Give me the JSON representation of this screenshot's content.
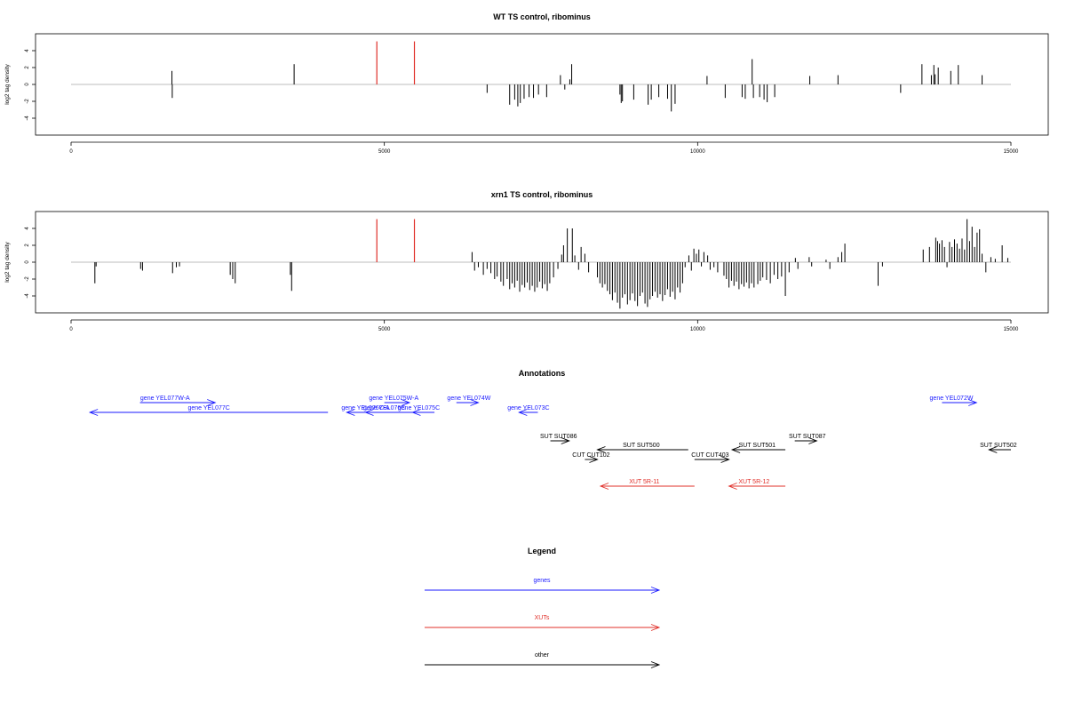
{
  "chart_data": [
    {
      "type": "bar",
      "title": "WT TS control, ribominus",
      "ylabel": "log2 tag density",
      "xlim": [
        0,
        15000
      ],
      "ylim": [
        -6,
        6
      ],
      "xticks": [
        "0",
        "5000",
        "10000",
        "15000"
      ],
      "yticks": [
        "-4",
        "-2",
        "0",
        "2",
        "4"
      ],
      "grid": false,
      "highlight_color": "#e0302a",
      "bar_color": "#000000",
      "baseline_color": "#bdbdbd",
      "highlight_bars": [
        [
          4880,
          5.1
        ],
        [
          5480,
          5.1
        ]
      ],
      "bars": [
        [
          1610,
          1.6
        ],
        [
          1615,
          -1.6
        ],
        [
          3560,
          2.4
        ],
        [
          6640,
          -1.0
        ],
        [
          7000,
          -2.4
        ],
        [
          7080,
          -1.8
        ],
        [
          7130,
          -2.6
        ],
        [
          7170,
          -2.2
        ],
        [
          7230,
          -1.7
        ],
        [
          7310,
          -1.5
        ],
        [
          7380,
          -1.6
        ],
        [
          7460,
          -1.2
        ],
        [
          7590,
          -1.5
        ],
        [
          7810,
          1.1
        ],
        [
          7880,
          -0.6
        ],
        [
          7960,
          0.6
        ],
        [
          7990,
          2.4
        ],
        [
          8760,
          -1.2
        ],
        [
          8780,
          -2.2
        ],
        [
          8800,
          -2.0
        ],
        [
          8980,
          -1.8
        ],
        [
          9210,
          -2.4
        ],
        [
          9260,
          -1.8
        ],
        [
          9380,
          -1.5
        ],
        [
          9520,
          -1.7
        ],
        [
          9580,
          -3.2
        ],
        [
          9640,
          -2.3
        ],
        [
          10150,
          1.0
        ],
        [
          10440,
          -1.6
        ],
        [
          10710,
          -1.5
        ],
        [
          10760,
          -1.7
        ],
        [
          10870,
          3.0
        ],
        [
          10890,
          -1.6
        ],
        [
          10990,
          -1.5
        ],
        [
          11060,
          -1.8
        ],
        [
          11110,
          -2.1
        ],
        [
          11230,
          -1.5
        ],
        [
          11790,
          1.0
        ],
        [
          12240,
          1.1
        ],
        [
          13240,
          -1.0
        ],
        [
          13580,
          2.4
        ],
        [
          13730,
          1.1
        ],
        [
          13770,
          2.3
        ],
        [
          13790,
          1.2
        ],
        [
          13840,
          2.0
        ],
        [
          14040,
          1.6
        ],
        [
          14160,
          2.3
        ],
        [
          14540,
          1.1
        ]
      ]
    },
    {
      "type": "bar",
      "title": "xrn1 TS control, ribominus",
      "ylabel": "log2 tag density",
      "xlim": [
        0,
        15000
      ],
      "ylim": [
        -6,
        6
      ],
      "xticks": [
        "0",
        "5000",
        "10000",
        "15000"
      ],
      "yticks": [
        "-4",
        "-2",
        "0",
        "2",
        "4"
      ],
      "grid": false,
      "highlight_color": "#e0302a",
      "bar_color": "#000000",
      "baseline_color": "#bdbdbd",
      "highlight_bars": [
        [
          4880,
          5.1
        ],
        [
          5480,
          5.1
        ]
      ],
      "bars": [
        [
          380,
          -2.5
        ],
        [
          400,
          -0.5
        ],
        [
          1110,
          -0.8
        ],
        [
          1140,
          -1.0
        ],
        [
          1620,
          -1.3
        ],
        [
          1680,
          -0.6
        ],
        [
          1730,
          -0.5
        ],
        [
          2540,
          -1.5
        ],
        [
          2580,
          -2.0
        ],
        [
          2620,
          -2.5
        ],
        [
          3500,
          -1.5
        ],
        [
          3520,
          -3.4
        ],
        [
          6400,
          1.2
        ],
        [
          6440,
          -1.0
        ],
        [
          6500,
          -0.6
        ],
        [
          6580,
          -1.5
        ],
        [
          6640,
          -0.8
        ],
        [
          6700,
          -1.3
        ],
        [
          6760,
          -2.0
        ],
        [
          6800,
          -1.7
        ],
        [
          6860,
          -2.3
        ],
        [
          6900,
          -2.8
        ],
        [
          6960,
          -2.0
        ],
        [
          7000,
          -3.2
        ],
        [
          7040,
          -2.5
        ],
        [
          7080,
          -3.0
        ],
        [
          7120,
          -2.2
        ],
        [
          7160,
          -3.5
        ],
        [
          7200,
          -2.7
        ],
        [
          7240,
          -3.0
        ],
        [
          7280,
          -2.4
        ],
        [
          7320,
          -3.3
        ],
        [
          7360,
          -2.8
        ],
        [
          7400,
          -3.5
        ],
        [
          7440,
          -3.0
        ],
        [
          7480,
          -2.3
        ],
        [
          7520,
          -3.1
        ],
        [
          7560,
          -2.6
        ],
        [
          7600,
          -3.4
        ],
        [
          7640,
          -2.5
        ],
        [
          7700,
          -1.8
        ],
        [
          7770,
          -0.8
        ],
        [
          7830,
          0.9
        ],
        [
          7860,
          2.0
        ],
        [
          7920,
          4.0
        ],
        [
          8000,
          4.0
        ],
        [
          8040,
          0.8
        ],
        [
          8100,
          -0.9
        ],
        [
          8140,
          1.8
        ],
        [
          8200,
          1.0
        ],
        [
          8260,
          -1.2
        ],
        [
          8400,
          -1.8
        ],
        [
          8440,
          -2.5
        ],
        [
          8480,
          -3.0
        ],
        [
          8520,
          -2.6
        ],
        [
          8560,
          -3.4
        ],
        [
          8600,
          -3.8
        ],
        [
          8640,
          -4.5
        ],
        [
          8680,
          -3.6
        ],
        [
          8720,
          -4.8
        ],
        [
          8760,
          -5.5
        ],
        [
          8800,
          -4.2
        ],
        [
          8840,
          -3.8
        ],
        [
          8880,
          -5.0
        ],
        [
          8920,
          -4.5
        ],
        [
          8960,
          -3.7
        ],
        [
          9000,
          -4.6
        ],
        [
          9040,
          -5.2
        ],
        [
          9080,
          -4.0
        ],
        [
          9120,
          -3.6
        ],
        [
          9160,
          -4.9
        ],
        [
          9200,
          -5.3
        ],
        [
          9240,
          -4.4
        ],
        [
          9280,
          -4.0
        ],
        [
          9320,
          -3.5
        ],
        [
          9360,
          -4.2
        ],
        [
          9400,
          -3.8
        ],
        [
          9440,
          -4.6
        ],
        [
          9480,
          -3.9
        ],
        [
          9520,
          -3.2
        ],
        [
          9560,
          -4.1
        ],
        [
          9600,
          -3.5
        ],
        [
          9640,
          -4.4
        ],
        [
          9680,
          -3.0
        ],
        [
          9720,
          -3.6
        ],
        [
          9760,
          -2.5
        ],
        [
          9800,
          -0.6
        ],
        [
          9860,
          0.8
        ],
        [
          9900,
          -1.0
        ],
        [
          9940,
          1.6
        ],
        [
          9980,
          1.0
        ],
        [
          10020,
          1.5
        ],
        [
          10060,
          -0.5
        ],
        [
          10100,
          1.2
        ],
        [
          10160,
          0.8
        ],
        [
          10200,
          -0.9
        ],
        [
          10260,
          -0.6
        ],
        [
          10320,
          -1.2
        ],
        [
          10420,
          -1.6
        ],
        [
          10460,
          -2.0
        ],
        [
          10500,
          -3.0
        ],
        [
          10540,
          -2.2
        ],
        [
          10580,
          -2.8
        ],
        [
          10620,
          -2.3
        ],
        [
          10660,
          -3.2
        ],
        [
          10700,
          -2.6
        ],
        [
          10740,
          -2.9
        ],
        [
          10780,
          -2.4
        ],
        [
          10820,
          -3.1
        ],
        [
          10860,
          -2.5
        ],
        [
          10900,
          -3.0
        ],
        [
          10960,
          -2.6
        ],
        [
          11000,
          -2.2
        ],
        [
          11040,
          -1.8
        ],
        [
          11100,
          -2.1
        ],
        [
          11160,
          -2.5
        ],
        [
          11220,
          -1.5
        ],
        [
          11280,
          -2.0
        ],
        [
          11340,
          -1.7
        ],
        [
          11400,
          -4.0
        ],
        [
          11460,
          -1.2
        ],
        [
          11560,
          0.5
        ],
        [
          11600,
          -0.8
        ],
        [
          11780,
          0.6
        ],
        [
          11820,
          -0.5
        ],
        [
          12050,
          0.3
        ],
        [
          12110,
          -0.8
        ],
        [
          12240,
          0.6
        ],
        [
          12300,
          1.2
        ],
        [
          12350,
          2.2
        ],
        [
          12880,
          -2.8
        ],
        [
          12950,
          -0.5
        ],
        [
          13600,
          1.5
        ],
        [
          13700,
          1.8
        ],
        [
          13800,
          2.9
        ],
        [
          13830,
          2.5
        ],
        [
          13860,
          2.2
        ],
        [
          13900,
          2.6
        ],
        [
          13940,
          1.8
        ],
        [
          13980,
          -0.6
        ],
        [
          14020,
          2.4
        ],
        [
          14060,
          1.8
        ],
        [
          14100,
          2.7
        ],
        [
          14140,
          2.2
        ],
        [
          14180,
          1.6
        ],
        [
          14220,
          2.8
        ],
        [
          14260,
          1.5
        ],
        [
          14300,
          5.1
        ],
        [
          14340,
          2.5
        ],
        [
          14380,
          4.2
        ],
        [
          14420,
          1.8
        ],
        [
          14460,
          3.5
        ],
        [
          14500,
          3.9
        ],
        [
          14540,
          1.0
        ],
        [
          14600,
          -1.2
        ],
        [
          14680,
          0.6
        ],
        [
          14750,
          0.4
        ],
        [
          14860,
          2.0
        ],
        [
          14950,
          0.5
        ]
      ]
    }
  ],
  "annotations": {
    "title": "Annotations",
    "xlim": [
      0,
      15000
    ],
    "features": [
      {
        "label": "gene YEL077W-A",
        "kind": "gene",
        "from": 1100,
        "to": 2300,
        "row": 0,
        "label_x": 1500
      },
      {
        "label": "gene YEL077C",
        "kind": "gene",
        "from": 4100,
        "to": 300,
        "row": 1,
        "label_x": 2200
      },
      {
        "label": "gene YEL076C-A",
        "kind": "gene",
        "from": 5050,
        "to": 4400,
        "row": 1,
        "label_x": 4700
      },
      {
        "label": "gene YEL076C",
        "kind": "gene",
        "from": 5450,
        "to": 4700,
        "row": 1,
        "label_x": 5000
      },
      {
        "label": "gene YEL075W-A",
        "kind": "gene",
        "from": 5000,
        "to": 5400,
        "row": 0,
        "label_x": 5150
      },
      {
        "label": "gene YEL075C",
        "kind": "gene",
        "from": 5800,
        "to": 5450,
        "row": 1,
        "label_x": 5550
      },
      {
        "label": "gene YEL074W",
        "kind": "gene",
        "from": 6150,
        "to": 6500,
        "row": 0,
        "label_x": 6350
      },
      {
        "label": "gene YEL073C",
        "kind": "gene",
        "from": 7450,
        "to": 7150,
        "row": 1,
        "label_x": 7300
      },
      {
        "label": "gene YEL072W",
        "kind": "gene",
        "from": 13900,
        "to": 14450,
        "row": 0,
        "label_x": 14050
      },
      {
        "label": "SUT SUT086",
        "kind": "other",
        "from": 7650,
        "to": 7950,
        "row": 2,
        "label_x": 7780
      },
      {
        "label": "SUT SUT500",
        "kind": "other",
        "from": 9850,
        "to": 8400,
        "row": 3,
        "label_x": 9100
      },
      {
        "label": "CUT CUT102",
        "kind": "other",
        "from": 8200,
        "to": 8400,
        "row": 4,
        "label_x": 8300
      },
      {
        "label": "CUT CUT403",
        "kind": "other",
        "from": 9950,
        "to": 10500,
        "row": 4,
        "label_x": 10200
      },
      {
        "label": "SUT SUT501",
        "kind": "other",
        "from": 11400,
        "to": 10550,
        "row": 3,
        "label_x": 10950
      },
      {
        "label": "SUT SUT087",
        "kind": "other",
        "from": 11550,
        "to": 11900,
        "row": 2,
        "label_x": 11750
      },
      {
        "label": "SUT SUT502",
        "kind": "other",
        "from": 15000,
        "to": 14650,
        "row": 3,
        "label_x": 14800
      },
      {
        "label": "XUT 5R-11",
        "kind": "xut",
        "from": 9950,
        "to": 8450,
        "row": 5,
        "label_x": 9150
      },
      {
        "label": "XUT 5R-12",
        "kind": "xut",
        "from": 11400,
        "to": 10500,
        "row": 5,
        "label_x": 10900
      }
    ]
  },
  "legend": {
    "title": "Legend",
    "items": [
      {
        "label": "genes",
        "color": "#1a1aff"
      },
      {
        "label": "XUTs",
        "color": "#e0302a"
      },
      {
        "label": "other",
        "color": "#000000"
      }
    ]
  },
  "colors": {
    "gene": "#1a1aff",
    "xut": "#e0302a",
    "other": "#000000"
  }
}
